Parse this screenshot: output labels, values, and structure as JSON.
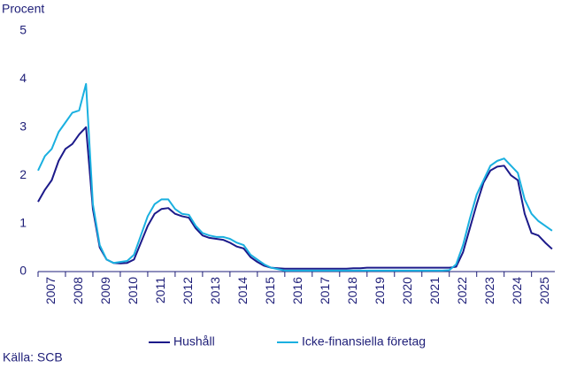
{
  "chart_data": {
    "type": "line",
    "y_label": "Procent",
    "source": "Källa: SCB",
    "x": [
      2007,
      2007.25,
      2007.5,
      2007.75,
      2008,
      2008.25,
      2008.5,
      2008.75,
      2009,
      2009.25,
      2009.5,
      2009.75,
      2010,
      2010.25,
      2010.5,
      2010.75,
      2011,
      2011.25,
      2011.5,
      2011.75,
      2012,
      2012.25,
      2012.5,
      2012.75,
      2013,
      2013.25,
      2013.5,
      2013.75,
      2014,
      2014.25,
      2014.5,
      2014.75,
      2015,
      2015.25,
      2015.5,
      2015.75,
      2016,
      2016.25,
      2016.5,
      2016.75,
      2017,
      2017.25,
      2017.5,
      2017.75,
      2018,
      2018.25,
      2018.5,
      2018.75,
      2019,
      2019.25,
      2019.5,
      2019.75,
      2020,
      2020.25,
      2020.5,
      2020.75,
      2021,
      2021.25,
      2021.5,
      2021.75,
      2022,
      2022.25,
      2022.5,
      2022.75,
      2023,
      2023.25,
      2023.5,
      2023.75,
      2024,
      2024.25,
      2024.5,
      2024.75,
      2025,
      2025.25,
      2025.5,
      2025.75
    ],
    "series": [
      {
        "name": "Hushåll",
        "color": "#1c1a8a",
        "values": [
          1.45,
          1.7,
          1.9,
          2.3,
          2.55,
          2.65,
          2.85,
          3.0,
          1.3,
          0.5,
          0.25,
          0.18,
          0.17,
          0.18,
          0.25,
          0.6,
          0.95,
          1.2,
          1.3,
          1.32,
          1.2,
          1.15,
          1.12,
          0.9,
          0.75,
          0.7,
          0.68,
          0.66,
          0.6,
          0.52,
          0.48,
          0.3,
          0.2,
          0.12,
          0.08,
          0.07,
          0.06,
          0.06,
          0.06,
          0.06,
          0.06,
          0.06,
          0.06,
          0.06,
          0.06,
          0.06,
          0.07,
          0.07,
          0.08,
          0.08,
          0.08,
          0.08,
          0.08,
          0.08,
          0.08,
          0.08,
          0.08,
          0.08,
          0.08,
          0.08,
          0.08,
          0.1,
          0.4,
          0.9,
          1.4,
          1.85,
          2.1,
          2.18,
          2.2,
          2.0,
          1.9,
          1.2,
          0.8,
          0.75,
          0.6,
          0.47
        ]
      },
      {
        "name": "Icke-finansiella företag",
        "color": "#1ab0e0",
        "values": [
          2.1,
          2.4,
          2.55,
          2.9,
          3.1,
          3.3,
          3.35,
          3.9,
          1.4,
          0.55,
          0.25,
          0.18,
          0.2,
          0.22,
          0.35,
          0.75,
          1.15,
          1.4,
          1.5,
          1.5,
          1.3,
          1.2,
          1.18,
          0.95,
          0.8,
          0.75,
          0.72,
          0.72,
          0.68,
          0.6,
          0.55,
          0.35,
          0.25,
          0.15,
          0.08,
          0.05,
          0.02,
          0.02,
          0.02,
          0.02,
          0.02,
          0.02,
          0.02,
          0.02,
          0.02,
          0.02,
          0.02,
          0.02,
          0.02,
          0.02,
          0.02,
          0.02,
          0.02,
          0.02,
          0.02,
          0.02,
          0.02,
          0.02,
          0.02,
          0.02,
          0.03,
          0.15,
          0.55,
          1.1,
          1.6,
          1.9,
          2.2,
          2.3,
          2.35,
          2.2,
          2.05,
          1.5,
          1.2,
          1.05,
          0.95,
          0.85
        ]
      }
    ],
    "xlim": [
      2007,
      2025.85
    ],
    "xticks": [
      2007,
      2008,
      2009,
      2010,
      2011,
      2012,
      2013,
      2014,
      2015,
      2016,
      2017,
      2018,
      2019,
      2020,
      2021,
      2022,
      2023,
      2024,
      2025
    ],
    "ylim": [
      0,
      5
    ],
    "yticks": [
      0,
      1,
      2,
      3,
      4,
      5
    ],
    "grid": false
  }
}
